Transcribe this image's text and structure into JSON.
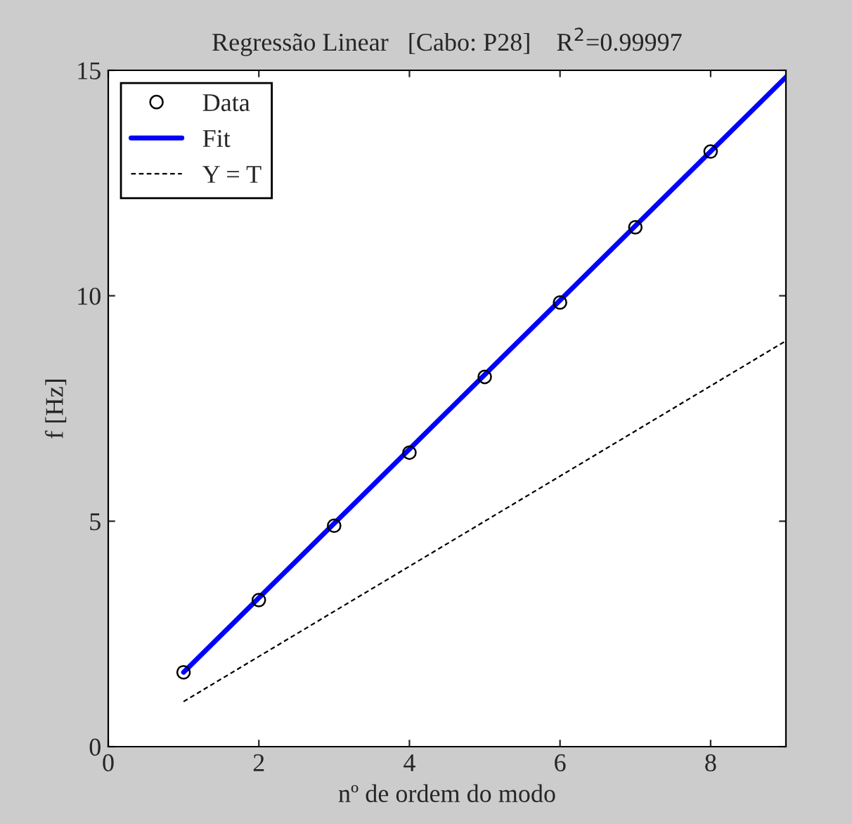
{
  "chart_data": {
    "type": "scatter",
    "title": "Regressão Linear   [Cabo: P28]    R$^{2}$=0.99997",
    "xlabel": "nº de ordem do modo",
    "ylabel": "f [Hz]",
    "xlim": [
      0,
      9
    ],
    "xticks": [
      0,
      2,
      4,
      6,
      8
    ],
    "ylim": [
      0,
      15
    ],
    "yticks": [
      0,
      5,
      10,
      15
    ],
    "grid": false,
    "legend": "top left",
    "series": [
      {
        "name": "Data",
        "color": "#000000",
        "marker": "circle",
        "x": [
          1,
          2,
          3,
          4,
          5,
          6,
          7,
          8
        ],
        "values": [
          1.65,
          3.25,
          4.9,
          6.52,
          8.2,
          9.85,
          11.52,
          13.2
        ]
      },
      {
        "name": "Fit",
        "type": "line",
        "color": "#0000ff",
        "line_style": "solid",
        "x": [
          1,
          9
        ],
        "values": [
          1.65,
          14.85
        ]
      },
      {
        "name": "Y = T",
        "type": "line",
        "color": "#000000",
        "line_style": "dashed",
        "x": [
          1,
          9
        ],
        "values": [
          1,
          9
        ]
      }
    ]
  }
}
